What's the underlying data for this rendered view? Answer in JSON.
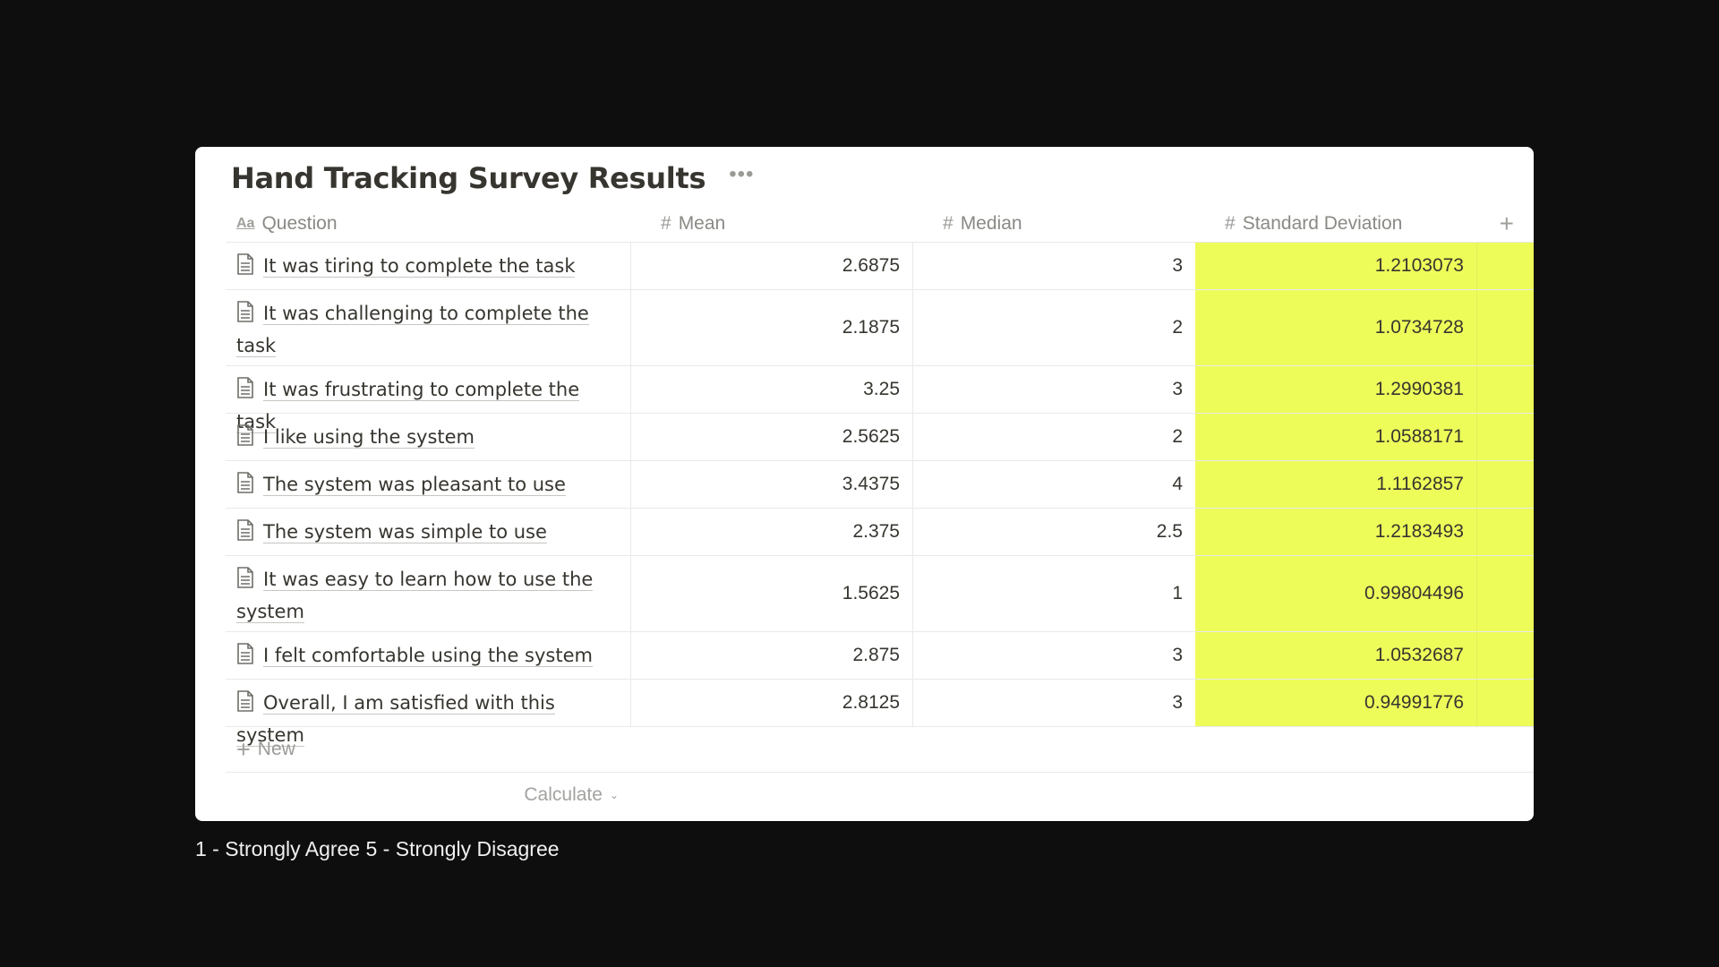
{
  "table": {
    "title": "Hand Tracking Survey Results",
    "more_icon": "more-horizontal-icon",
    "columns": [
      {
        "label": "Question",
        "icon": "text-property-icon"
      },
      {
        "label": "Mean",
        "icon": "number-property-icon"
      },
      {
        "label": "Median",
        "icon": "number-property-icon"
      },
      {
        "label": "Standard Deviation",
        "icon": "number-property-icon"
      }
    ],
    "rows": [
      {
        "question": "It was tiring to complete the task",
        "mean": "2.6875",
        "median": "3",
        "sd": "1.2103073"
      },
      {
        "question": "It was challenging to complete the task",
        "mean": "2.1875",
        "median": "2",
        "sd": "1.0734728"
      },
      {
        "question": "It was frustrating to complete the task",
        "mean": "3.25",
        "median": "3",
        "sd": "1.2990381"
      },
      {
        "question": "I like using the system",
        "mean": "2.5625",
        "median": "2",
        "sd": "1.0588171"
      },
      {
        "question": "The system was pleasant to use",
        "mean": "3.4375",
        "median": "4",
        "sd": "1.1162857"
      },
      {
        "question": "The system was simple to use",
        "mean": "2.375",
        "median": "2.5",
        "sd": "1.2183493"
      },
      {
        "question": "It was easy to learn how to use the system",
        "mean": "1.5625",
        "median": "1",
        "sd": "0.99804496"
      },
      {
        "question": "I felt comfortable using the system",
        "mean": "2.875",
        "median": "3",
        "sd": "1.0532687"
      },
      {
        "question": "Overall, I am satisfied with this system",
        "mean": "2.8125",
        "median": "3",
        "sd": "0.94991776"
      }
    ],
    "new_label": "New",
    "calculate_label": "Calculate",
    "highlight_color": "#eefc5a"
  },
  "footnote": "1 - Strongly Agree 5 - Strongly Disagree"
}
